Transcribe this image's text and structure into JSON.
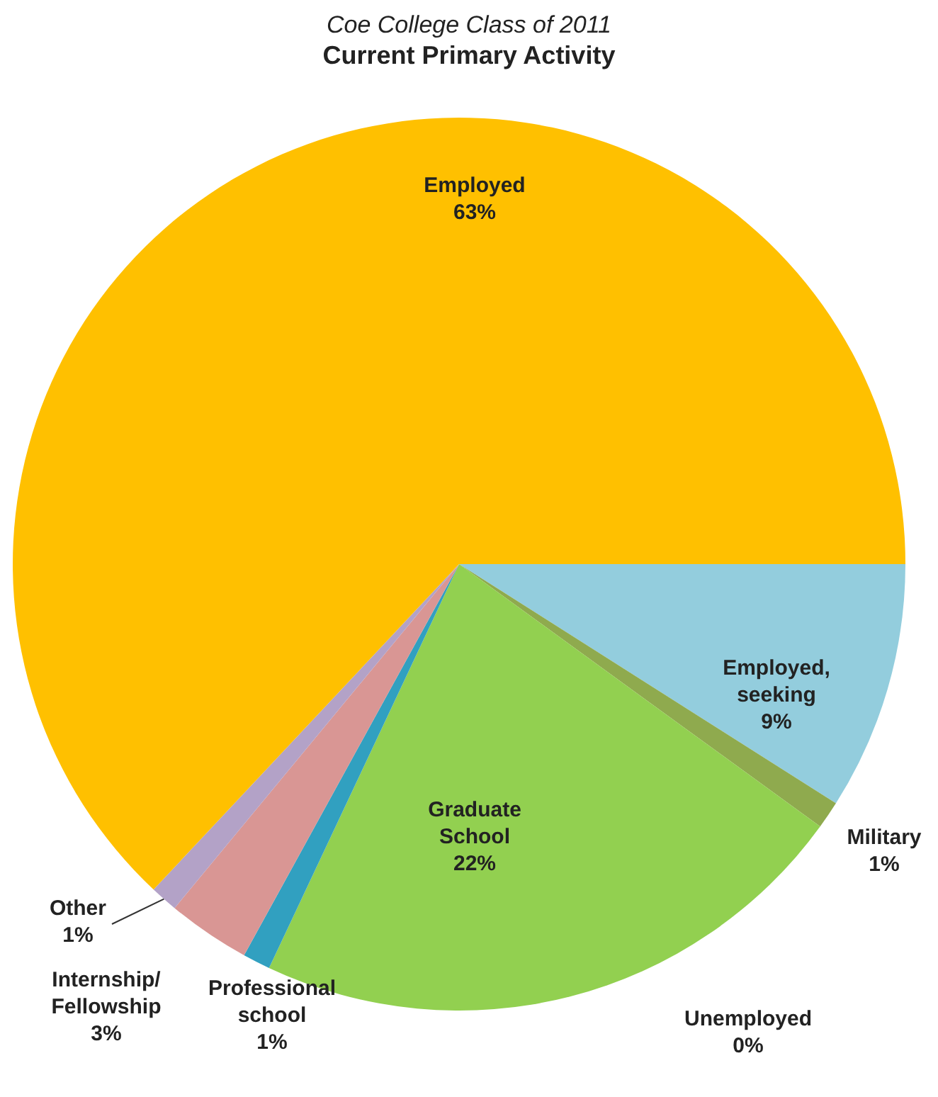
{
  "chart_data": {
    "type": "pie",
    "title": "Current Primary Activity",
    "subtitle": "Coe College Class of 2011",
    "categories": [
      "Employed, seeking",
      "Military",
      "Unemployed",
      "Graduate School",
      "Professional school",
      "Internship/Fellowship",
      "Other",
      "Employed"
    ],
    "values": [
      9,
      1,
      0,
      22,
      1,
      3,
      1,
      63
    ],
    "value_labels": [
      "9%",
      "1%",
      "0%",
      "22%",
      "1%",
      "3%",
      "1%",
      "63%"
    ],
    "colors": [
      "#93cddd",
      "#8faa4e",
      "#c0504d",
      "#92d050",
      "#31a0c0",
      "#d99694",
      "#b3a2c7",
      "#ffc000"
    ],
    "legend": false
  }
}
